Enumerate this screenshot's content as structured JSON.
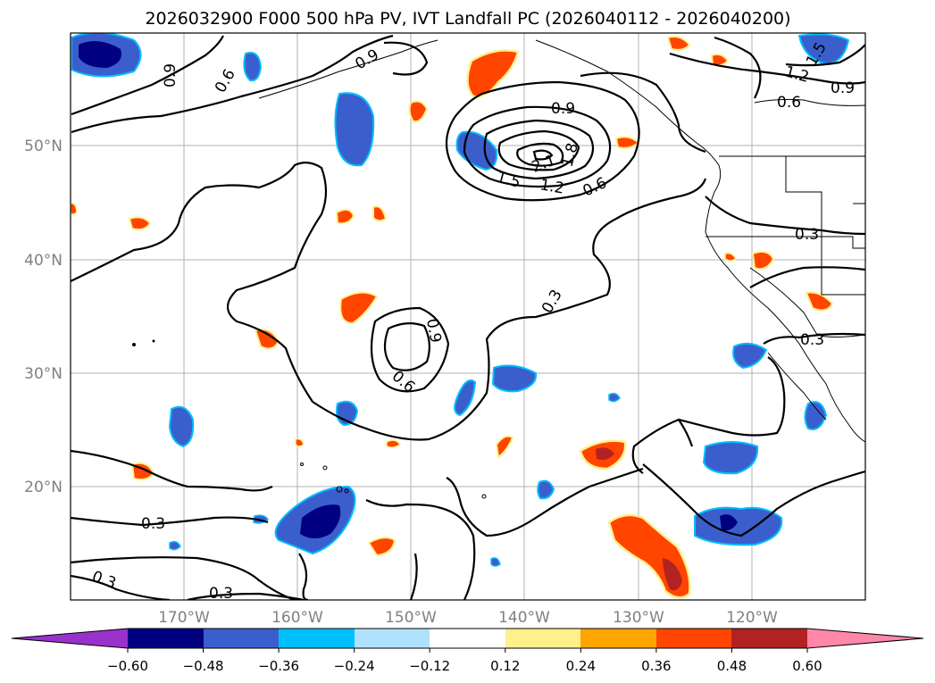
{
  "title": "2026032900 F000 500 hPa PV, IVT Landfall PC (2026040112 - 2026040200)",
  "lat_ticks": [
    "50°N",
    "40°N",
    "30°N",
    "20°N"
  ],
  "lon_ticks": [
    "170°W",
    "160°W",
    "150°W",
    "140°W",
    "130°W",
    "120°W"
  ],
  "colorbar": {
    "ticks": [
      "−0.60",
      "−0.48",
      "−0.36",
      "−0.24",
      "−0.12",
      "0.12",
      "0.24",
      "0.36",
      "0.48",
      "0.60"
    ],
    "colors": [
      "#9932cc",
      "#000080",
      "#3a5fcd",
      "#00bfff",
      "#b0e2ff",
      "#ffffff",
      "#fff08c",
      "#ffa500",
      "#ff4500",
      "#b22222",
      "#ff88aa"
    ]
  },
  "contour_labels": [
    "0.9",
    "0.6",
    "0.9",
    "1.2",
    "1.5",
    "0.9",
    "0.6",
    "1.5",
    "2.1",
    "1.8",
    "1.2",
    "0.6",
    "0.9",
    "0.3",
    "0.9",
    "0.6",
    "0.3",
    "0.3",
    "0.3",
    "0.3",
    "0.3"
  ],
  "chart_data": {
    "type": "map",
    "title": "2026032900 F000 500 hPa PV, IVT Landfall PC (2026040112 - 2026040200)",
    "projection": "PlateCarree",
    "lon_range": [
      -180,
      -110
    ],
    "lat_range": [
      10,
      60
    ],
    "contour_field": "500 hPa PV",
    "contour_levels": [
      0.3,
      0.6,
      0.9,
      1.2,
      1.5,
      1.8,
      2.1
    ],
    "fill_field": "IVT Landfall PC",
    "fill_levels": [
      -0.6,
      -0.48,
      -0.36,
      -0.24,
      -0.12,
      0.12,
      0.24,
      0.36,
      0.48,
      0.6
    ],
    "features": [
      {
        "name": "PV maximum",
        "lon": -139,
        "lat": 50,
        "value": 2.1
      },
      {
        "name": "PV secondary maximum",
        "lon": -148.5,
        "lat": 32.5,
        "value": 0.9
      },
      {
        "name": "Strongest negative PC",
        "lon": -157.5,
        "lat": 17,
        "value": -0.6
      },
      {
        "name": "Strongest positive PC",
        "lon": -127.5,
        "lat": 13,
        "value": 0.48
      }
    ]
  }
}
